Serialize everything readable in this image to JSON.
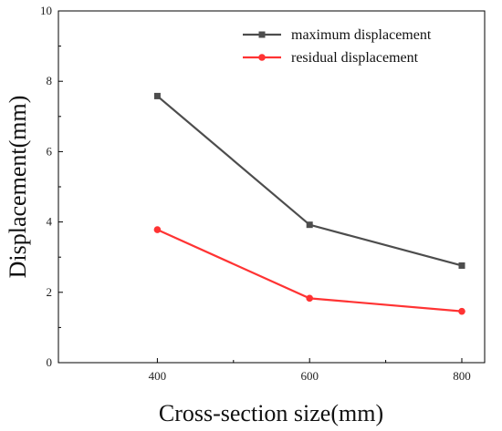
{
  "chart_data": {
    "type": "line",
    "title": "",
    "xlabel": "Cross-section size(mm)",
    "ylabel": "Displacement(mm)",
    "x": [
      400,
      600,
      800
    ],
    "x_ticks": [
      400,
      600,
      800
    ],
    "x_minor_ticks": [
      500,
      700
    ],
    "xlim": [
      270,
      830
    ],
    "ylim": [
      0,
      10
    ],
    "y_ticks": [
      0,
      2,
      4,
      6,
      8,
      10
    ],
    "grid": false,
    "legend_position": "top-right",
    "series": [
      {
        "name": "maximum displacement",
        "values": [
          7.58,
          3.92,
          2.76
        ],
        "color": "#4d4d4d",
        "marker": "square"
      },
      {
        "name": "residual displacement",
        "values": [
          3.78,
          1.83,
          1.46
        ],
        "color": "#ff3333",
        "marker": "circle"
      }
    ]
  }
}
